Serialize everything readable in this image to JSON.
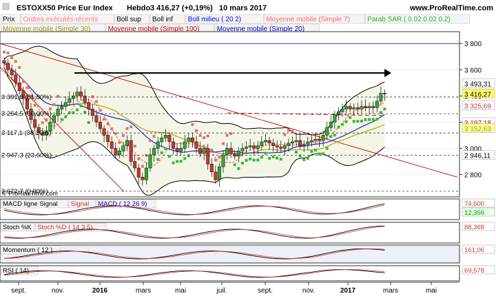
{
  "header": {
    "instrument": "ESTOXX50 Price Eur Index",
    "period": "Hebdo",
    "price_change": "3 416,27 (+0,19%)",
    "date": "10 mars 2017",
    "site": "www.ProRealTime.com"
  },
  "legend_row1": [
    {
      "label": "Prix",
      "color": "#000000"
    },
    {
      "label": "Ordres exécutés récents",
      "color": "#ff8080"
    },
    {
      "label": "Boll sup",
      "color": "#000000"
    },
    {
      "label": "Boll inf",
      "color": "#000000"
    },
    {
      "label": "Boll milieu ( 20 2)",
      "color": "#0000ff"
    },
    {
      "label": "Moyenne mobile (Simple 7)",
      "color": "#ff6666"
    },
    {
      "label": "Parab SAR ( 0.02 0.02 0.2)",
      "color": "#33aa33"
    }
  ],
  "legend_row2": [
    {
      "label": "Moyenne mobile (Simple 30)",
      "color": "#999900"
    },
    {
      "label": "Moyenne mobile (Simple 100)",
      "color": "#cc0000"
    },
    {
      "label": "Moyenne mobile (Simple 20)",
      "color": "#0000cc"
    }
  ],
  "colors": {
    "up": "#33aa33",
    "down": "#cc3333",
    "bollinger": "#000000",
    "ma7": "#ff4444",
    "ma20": "#2222dd",
    "ma30": "#aaaa00",
    "ma100": "#cc0000",
    "sar": "#33bb33",
    "fib": "#333333"
  },
  "fib_levels": [
    {
      "label": "3 391,8 (61,80%)",
      "value": 3391.8
    },
    {
      "label": "3 264,5 (50,00%)",
      "value": 3264.5
    },
    {
      "label": "3 117,1 (38,20%)",
      "value": 3117.1
    },
    {
      "label": "2 947,3 (23,60%)",
      "value": 2947.3
    },
    {
      "label": "2 672,7 (0,00%)",
      "value": 2672.7
    }
  ],
  "price_tags": [
    {
      "text": "3 493,31",
      "value": 3493.31,
      "bg": "#ffffff",
      "fg": "#000000"
    },
    {
      "text": "3 416,27",
      "value": 3416.27,
      "bg": "#ffff66",
      "fg": "#000000"
    },
    {
      "text": "3 325,69",
      "value": 3325.69,
      "bg": "#ffffff",
      "fg": "#cc3333"
    },
    {
      "text": "3 197,18",
      "value": 3197.18,
      "bg": "#ffffff",
      "fg": "#cc0000"
    },
    {
      "text": "3 152,63",
      "value": 3152.63,
      "bg": "#ffff99",
      "fg": "#999900"
    },
    {
      "text": "2 946,11",
      "value": 2946.11,
      "bg": "#ffffff",
      "fg": "#000000"
    }
  ],
  "x_axis_labels": [
    "sept.",
    "nov.",
    "2016",
    "mars",
    "mai",
    "juil.",
    "sept.",
    "nov.",
    "2017",
    "mars",
    "mai"
  ],
  "chart_data": {
    "type": "candlestick",
    "ylim": [
      2640,
      3880
    ],
    "y_ticks": [
      2800,
      3000,
      3200,
      3400,
      3600,
      3800
    ],
    "y_tick_labels": [
      "2 800",
      "3 000",
      "3 200",
      "3 400",
      "3 600",
      "3 800"
    ],
    "closes": [
      3650,
      3600,
      3560,
      3500,
      3440,
      3380,
      3300,
      3220,
      3160,
      3120,
      3100,
      3130,
      3200,
      3250,
      3300,
      3320,
      3350,
      3380,
      3400,
      3430,
      3400,
      3350,
      3300,
      3250,
      3200,
      3150,
      3100,
      3050,
      3000,
      2950,
      2980,
      3020,
      3060,
      2900,
      2850,
      2780,
      2760,
      2850,
      2950,
      3000,
      3050,
      3080,
      3100,
      3050,
      3000,
      2980,
      3000,
      3050,
      3080,
      3050,
      3000,
      2960,
      3000,
      2880,
      2820,
      2760,
      2860,
      2950,
      3000,
      2960,
      2940,
      2980,
      3000,
      3010,
      3020,
      3000,
      3020,
      3050,
      3060,
      3040,
      3020,
      3010,
      3000,
      3020,
      3040,
      3050,
      3060,
      3020,
      3030,
      3050,
      3060,
      3070,
      3060,
      3100,
      3160,
      3200,
      3260,
      3280,
      3300,
      3320,
      3300,
      3310,
      3300,
      3320,
      3310,
      3320,
      3310,
      3360,
      3420,
      3416
    ],
    "bollinger": {
      "upper_label": "Boll sup",
      "lower_label": "Boll inf"
    },
    "sar_last": 3152.63,
    "panels": [
      {
        "name": "MACD",
        "legend": [
          "MACD ligne Signal",
          "Signal",
          "MACD ( 12 26 9)"
        ],
        "values": [
          "74,600",
          "12,356"
        ]
      },
      {
        "name": "Stoch",
        "legend": [
          "Stoch %K",
          "Stoch %D ( 14 3 5)"
        ],
        "values": [
          "88,368"
        ]
      },
      {
        "name": "Momentum",
        "legend": [
          "Momentum ( 12 )"
        ],
        "values": [
          "161,06"
        ]
      },
      {
        "name": "RSI",
        "legend": [
          "RSI ( 14)"
        ],
        "values": [
          "69,578"
        ]
      }
    ]
  },
  "watermark": "© ProRealTime.com"
}
